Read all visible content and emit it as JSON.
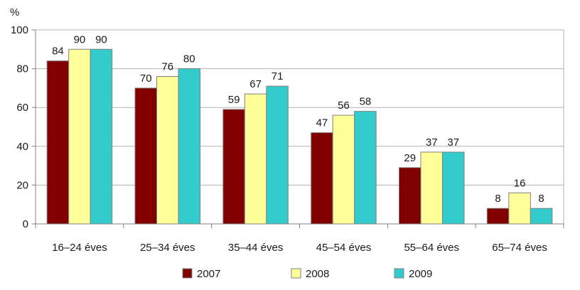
{
  "chart_data": {
    "type": "bar",
    "ylabel": "%",
    "ylim": [
      0,
      100
    ],
    "yticks": [
      0,
      20,
      40,
      60,
      80,
      100
    ],
    "grid": true,
    "legend_position": "bottom",
    "categories": [
      "16–24 éves",
      "25–34 éves",
      "35–44 éves",
      "45–54 éves",
      "55–64 éves",
      "65–74 éves"
    ],
    "series": [
      {
        "name": "2007",
        "color": "#800000",
        "values": [
          84,
          70,
          59,
          47,
          29,
          8
        ]
      },
      {
        "name": "2008",
        "color": "#FFFF99",
        "values": [
          90,
          76,
          67,
          56,
          37,
          16
        ]
      },
      {
        "name": "2009",
        "color": "#33CCCC",
        "values": [
          90,
          80,
          71,
          58,
          37,
          8
        ]
      }
    ]
  }
}
